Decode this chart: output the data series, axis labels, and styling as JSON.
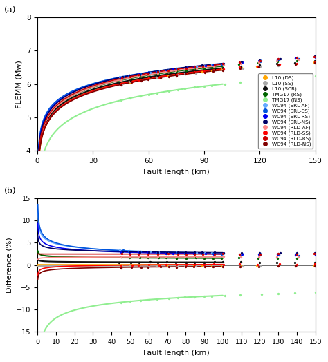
{
  "title_a": "(a)",
  "title_b": "(b)",
  "xlabel_a": "Fault length (km)",
  "xlabel_b": "Fault length (km)",
  "ylabel_a": "FLEMM (Mw)",
  "ylabel_b": "Difference (%)",
  "xlim_a": [
    0,
    150
  ],
  "ylim_a": [
    4,
    8
  ],
  "xlim_b": [
    0,
    150
  ],
  "ylim_b": [
    -15,
    15
  ],
  "xticks_a": [
    0,
    30,
    60,
    90,
    120,
    150
  ],
  "xticks_b": [
    0,
    10,
    20,
    30,
    40,
    50,
    60,
    70,
    80,
    90,
    100,
    110,
    120,
    130,
    140,
    150
  ],
  "yticks_a": [
    4,
    5,
    6,
    7,
    8
  ],
  "yticks_b": [
    -15,
    -10,
    -5,
    0,
    5,
    10,
    15
  ],
  "series": [
    {
      "name": "L10_DS",
      "a": 4.0,
      "b": 1.22,
      "label": "L10 (DS)",
      "color": "#FFA500",
      "lw": 2.2
    },
    {
      "name": "L10_SS",
      "a": 3.99,
      "b": 1.22,
      "label": "L10 (SS)",
      "color": "#AAAAAA",
      "lw": 1.5
    },
    {
      "name": "L10_SCR",
      "a": 4.04,
      "b": 1.22,
      "label": "L10 (SCR)",
      "color": "#111111",
      "lw": 1.5
    },
    {
      "name": "TMG17_RS",
      "a": 4.1,
      "b": 1.22,
      "label": "TMG17 (RS)",
      "color": "#006400",
      "lw": 1.5
    },
    {
      "name": "TMG17_NS",
      "a": 3.2,
      "b": 1.4,
      "label": "TMG17 (NS)",
      "color": "#90EE90",
      "lw": 1.5
    },
    {
      "name": "WC94_SRL_AF",
      "a": 4.33,
      "b": 1.14,
      "label": "WC94 (SRL-AF)",
      "color": "#66AAFF",
      "lw": 1.2
    },
    {
      "name": "WC94_SRL_SS",
      "a": 4.36,
      "b": 1.12,
      "label": "WC94 (SRL-SS)",
      "color": "#0055DD",
      "lw": 1.2
    },
    {
      "name": "WC94_SRL_RS",
      "a": 4.26,
      "b": 1.17,
      "label": "WC94 (SRL-RS)",
      "color": "#0000EE",
      "lw": 1.2
    },
    {
      "name": "WC94_SRL_NS",
      "a": 4.2,
      "b": 1.21,
      "label": "WC94 (SRL-NS)",
      "color": "#000066",
      "lw": 1.2
    },
    {
      "name": "WC94_RLD_AF",
      "a": 4.06,
      "b": 1.25,
      "label": "WC94 (RLD-AF)",
      "color": "#FF8888",
      "lw": 1.2
    },
    {
      "name": "WC94_RLD_SS",
      "a": 3.95,
      "b": 1.25,
      "label": "WC94 (RLD-SS)",
      "color": "#FF0000",
      "lw": 1.2
    },
    {
      "name": "WC94_RLD_RS",
      "a": 4.1,
      "b": 1.25,
      "label": "WC94 (RLD-RS)",
      "color": "#CC0000",
      "lw": 1.2
    },
    {
      "name": "WC94_RLD_NS",
      "a": 3.92,
      "b": 1.25,
      "label": "WC94 (RLD-NS)",
      "color": "#800000",
      "lw": 1.2
    }
  ],
  "background": "#ffffff",
  "curve_xmax": 100,
  "dot_x": [
    45,
    50,
    55,
    60,
    65,
    70,
    75,
    80,
    85,
    90,
    95,
    100,
    110,
    120,
    130,
    140,
    150
  ]
}
